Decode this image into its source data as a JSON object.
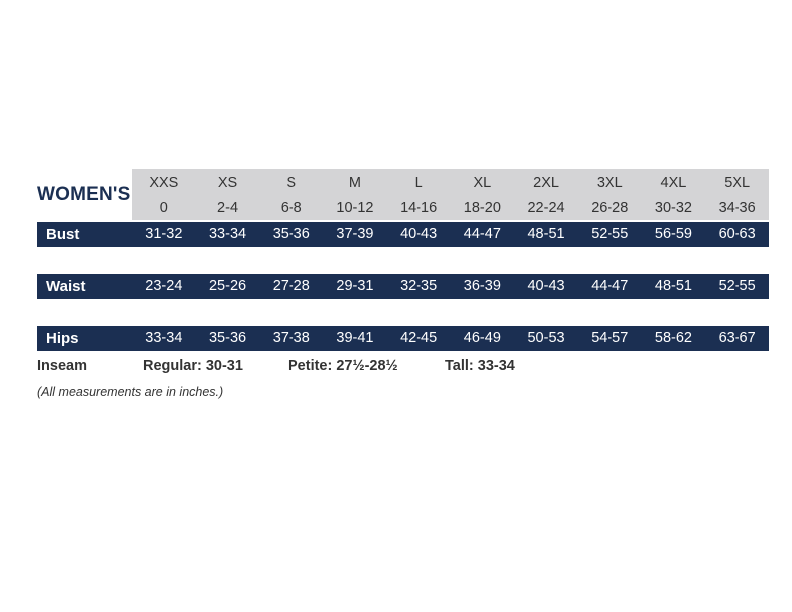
{
  "title": "WOMEN'S",
  "sizes": [
    "XXS",
    "XS",
    "S",
    "M",
    "L",
    "XL",
    "2XL",
    "3XL",
    "4XL",
    "5XL"
  ],
  "numeric_sizes": [
    "0",
    "2-4",
    "6-8",
    "10-12",
    "14-16",
    "18-20",
    "22-24",
    "26-28",
    "30-32",
    "34-36"
  ],
  "rows": [
    {
      "label": "Bust",
      "values": [
        "31-32",
        "33-34",
        "35-36",
        "37-39",
        "40-43",
        "44-47",
        "48-51",
        "52-55",
        "56-59",
        "60-63"
      ]
    },
    {
      "label": "Waist",
      "values": [
        "23-24",
        "25-26",
        "27-28",
        "29-31",
        "32-35",
        "36-39",
        "40-43",
        "44-47",
        "48-51",
        "52-55"
      ]
    },
    {
      "label": "Hips",
      "values": [
        "33-34",
        "35-36",
        "37-38",
        "39-41",
        "42-45",
        "46-49",
        "50-53",
        "54-57",
        "58-62",
        "63-67"
      ]
    }
  ],
  "inseam": {
    "label": "Inseam",
    "regular": "Regular: 30-31",
    "petite": "Petite: 27½-28½",
    "tall": "Tall: 33-34"
  },
  "note": "(All measurements are in inches.)",
  "colors": {
    "navy": "#1b2f52",
    "header_gray": "#d4d4d6"
  }
}
